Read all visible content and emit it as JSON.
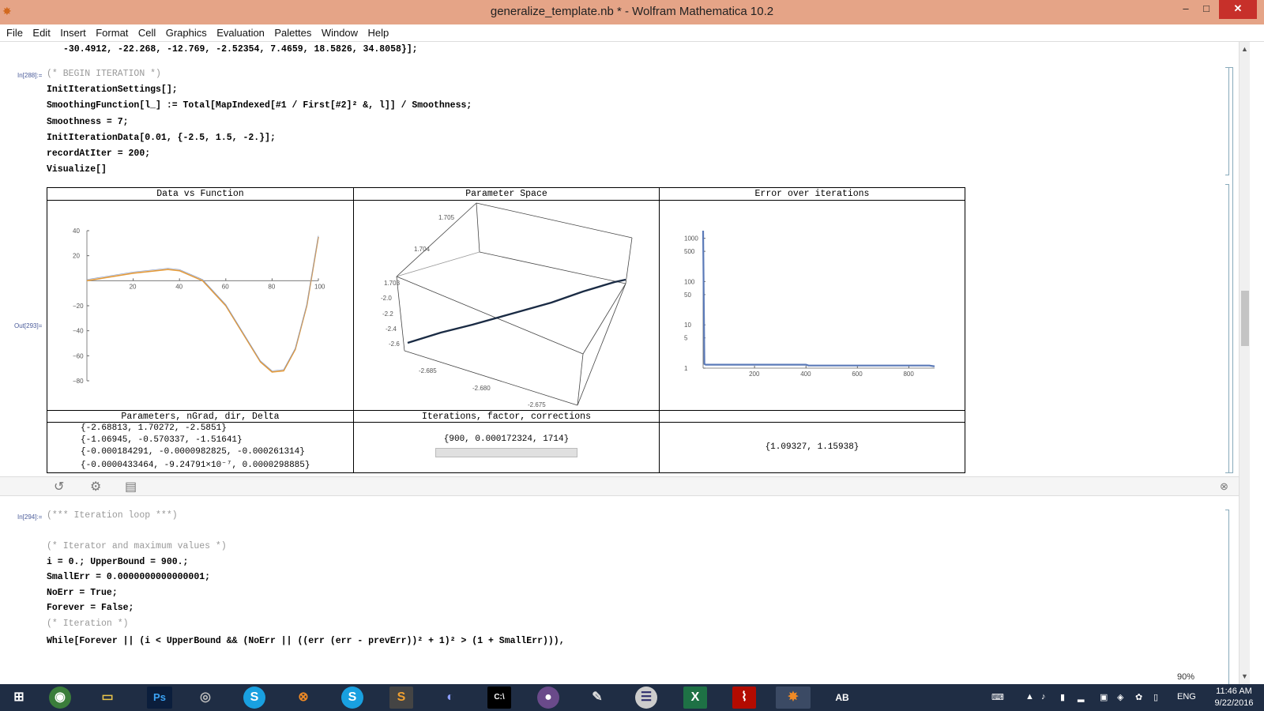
{
  "window": {
    "title": "generalize_template.nb * - Wolfram Mathematica 10.2",
    "min_label": "–",
    "max_label": "□",
    "close_label": "✕"
  },
  "menu": [
    "File",
    "Edit",
    "Insert",
    "Format",
    "Cell",
    "Graphics",
    "Evaluation",
    "Palettes",
    "Window",
    "Help"
  ],
  "cells": {
    "top_line": "-30.4912, -22.268, -12.769, -2.52354, 7.4659, 18.5826, 34.8058}];",
    "in288_label": "In[288]:=",
    "in288_lines": [
      "(* BEGIN ITERATION *)",
      "InitIterationSettings[];",
      "SmoothingFunction[l_] := Total[MapIndexed[#1 / First[#2]² &, l]] / Smoothness;",
      "Smoothness = 7;",
      "InitIterationData[0.01, {-2.5, 1.5, -2.}];",
      "recordAtIter = 200;",
      "Visualize[]"
    ],
    "out293_label": "Out[293]=",
    "in294_label": "In[294]:=",
    "in294_lines": [
      "(*** Iteration loop ***)",
      "(* Iterator and maximum values *)",
      "i = 0.; UpperBound = 900.;",
      "SmallErr = 0.0000000000000001;",
      "NoErr = True;",
      "Forever = False;",
      "(* Iteration *)",
      "While[Forever || (i < UpperBound && (NoErr || ((err (err - prevErr))² + 1)² > (1 + SmallErr))),"
    ]
  },
  "grid": {
    "headers": [
      "Data vs Function",
      "Parameter Space",
      "Error over iterations"
    ],
    "bottom_headers": [
      "Parameters, nGrad, dir, Delta",
      "Iterations, factor, corrections",
      ""
    ],
    "params_lines": [
      "{-2.68813, 1.70272, -2.5851}",
      "{-1.06945, -0.570337, -1.51641}",
      "{-0.000184291, -0.0000982825, -0.000261314}",
      "{-0.0000433464, -9.24791×10⁻⁷, 0.0000298885}"
    ],
    "iterations_text": "{900, 0.000172324, 1714}",
    "progress_fraction": 1.0,
    "last_text": "{1.09327, 1.15938}"
  },
  "chart_data": [
    {
      "type": "line",
      "title": "Data vs Function",
      "xlabel": "",
      "ylabel": "",
      "xlim": [
        0,
        100
      ],
      "ylim": [
        -80,
        40
      ],
      "x_ticks": [
        "20",
        "40",
        "60",
        "80",
        "100"
      ],
      "y_ticks": [
        "40",
        "20",
        "−20",
        "−40",
        "−60",
        "−80"
      ],
      "series": [
        {
          "x": [
            0,
            10,
            20,
            30,
            35,
            40,
            50,
            60,
            70,
            75,
            80,
            85,
            90,
            95,
            100
          ],
          "values": [
            0,
            3,
            6,
            8,
            9,
            8,
            0,
            -20,
            -50,
            -65,
            -73,
            -72,
            -55,
            -20,
            35
          ]
        }
      ]
    },
    {
      "type": "scatter",
      "title": "Parameter Space",
      "axis_ticks_z": [
        "1.705",
        "1.704",
        "1.703"
      ],
      "axis_ticks_y": [
        "-2.0",
        "-2.2",
        "-2.4",
        "-2.6"
      ],
      "axis_ticks_x": [
        "-2.685",
        "-2.680",
        "-2.675"
      ]
    },
    {
      "type": "line",
      "title": "Error over iterations",
      "xlabel": "",
      "ylabel": "",
      "log_y": true,
      "xlim": [
        0,
        900
      ],
      "ylim": [
        1,
        1500
      ],
      "x_ticks": [
        "200",
        "400",
        "600",
        "800"
      ],
      "y_ticks": [
        "1000",
        "500",
        "100",
        "50",
        "10",
        "5",
        "1"
      ],
      "series": [
        {
          "x": [
            0,
            5,
            10,
            20,
            400,
            410,
            880,
            900
          ],
          "values": [
            1500,
            1.25,
            1.2,
            1.2,
            1.2,
            1.15,
            1.15,
            1.1
          ]
        }
      ]
    }
  ],
  "toolbar": {
    "zoom": "90%"
  },
  "taskbar": {
    "apps": [
      "windows-start",
      "chrome",
      "file-explorer",
      "photoshop",
      "app-circle",
      "skype",
      "app-x",
      "skype-2",
      "sublime",
      "discord",
      "cmd",
      "github",
      "notepad",
      "eclipse",
      "excel",
      "acrobat",
      "mathematica",
      "ab-app"
    ],
    "tray_lang": "ENG",
    "time": "11:46 AM",
    "date": "9/22/2016"
  }
}
